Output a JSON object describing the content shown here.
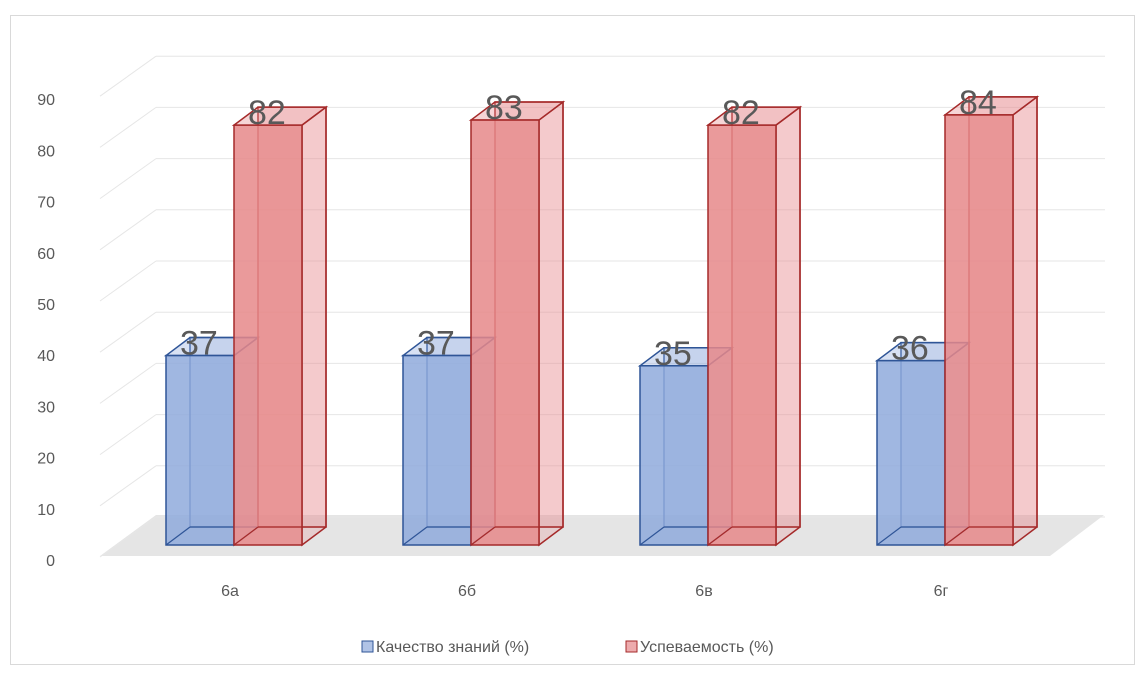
{
  "chart_data": {
    "type": "bar",
    "title": "",
    "xlabel": "",
    "ylabel": "",
    "categories": [
      "6а",
      "6б",
      "6в",
      "6г"
    ],
    "series": [
      {
        "name": "Качество знаний (%)",
        "values": [
          37,
          37,
          35,
          36
        ],
        "color": "#8faadc",
        "stroke": "#2f5597"
      },
      {
        "name": "Успеваемость (%)",
        "values": [
          82,
          83,
          82,
          84
        ],
        "color": "#e6888a",
        "stroke": "#a52a2a"
      }
    ],
    "ylim": [
      0,
      90
    ],
    "yticks": [
      0,
      10,
      20,
      30,
      40,
      50,
      60,
      70,
      80,
      90
    ],
    "grid": true,
    "legend_position": "bottom",
    "style": "3d-clustered-column"
  }
}
